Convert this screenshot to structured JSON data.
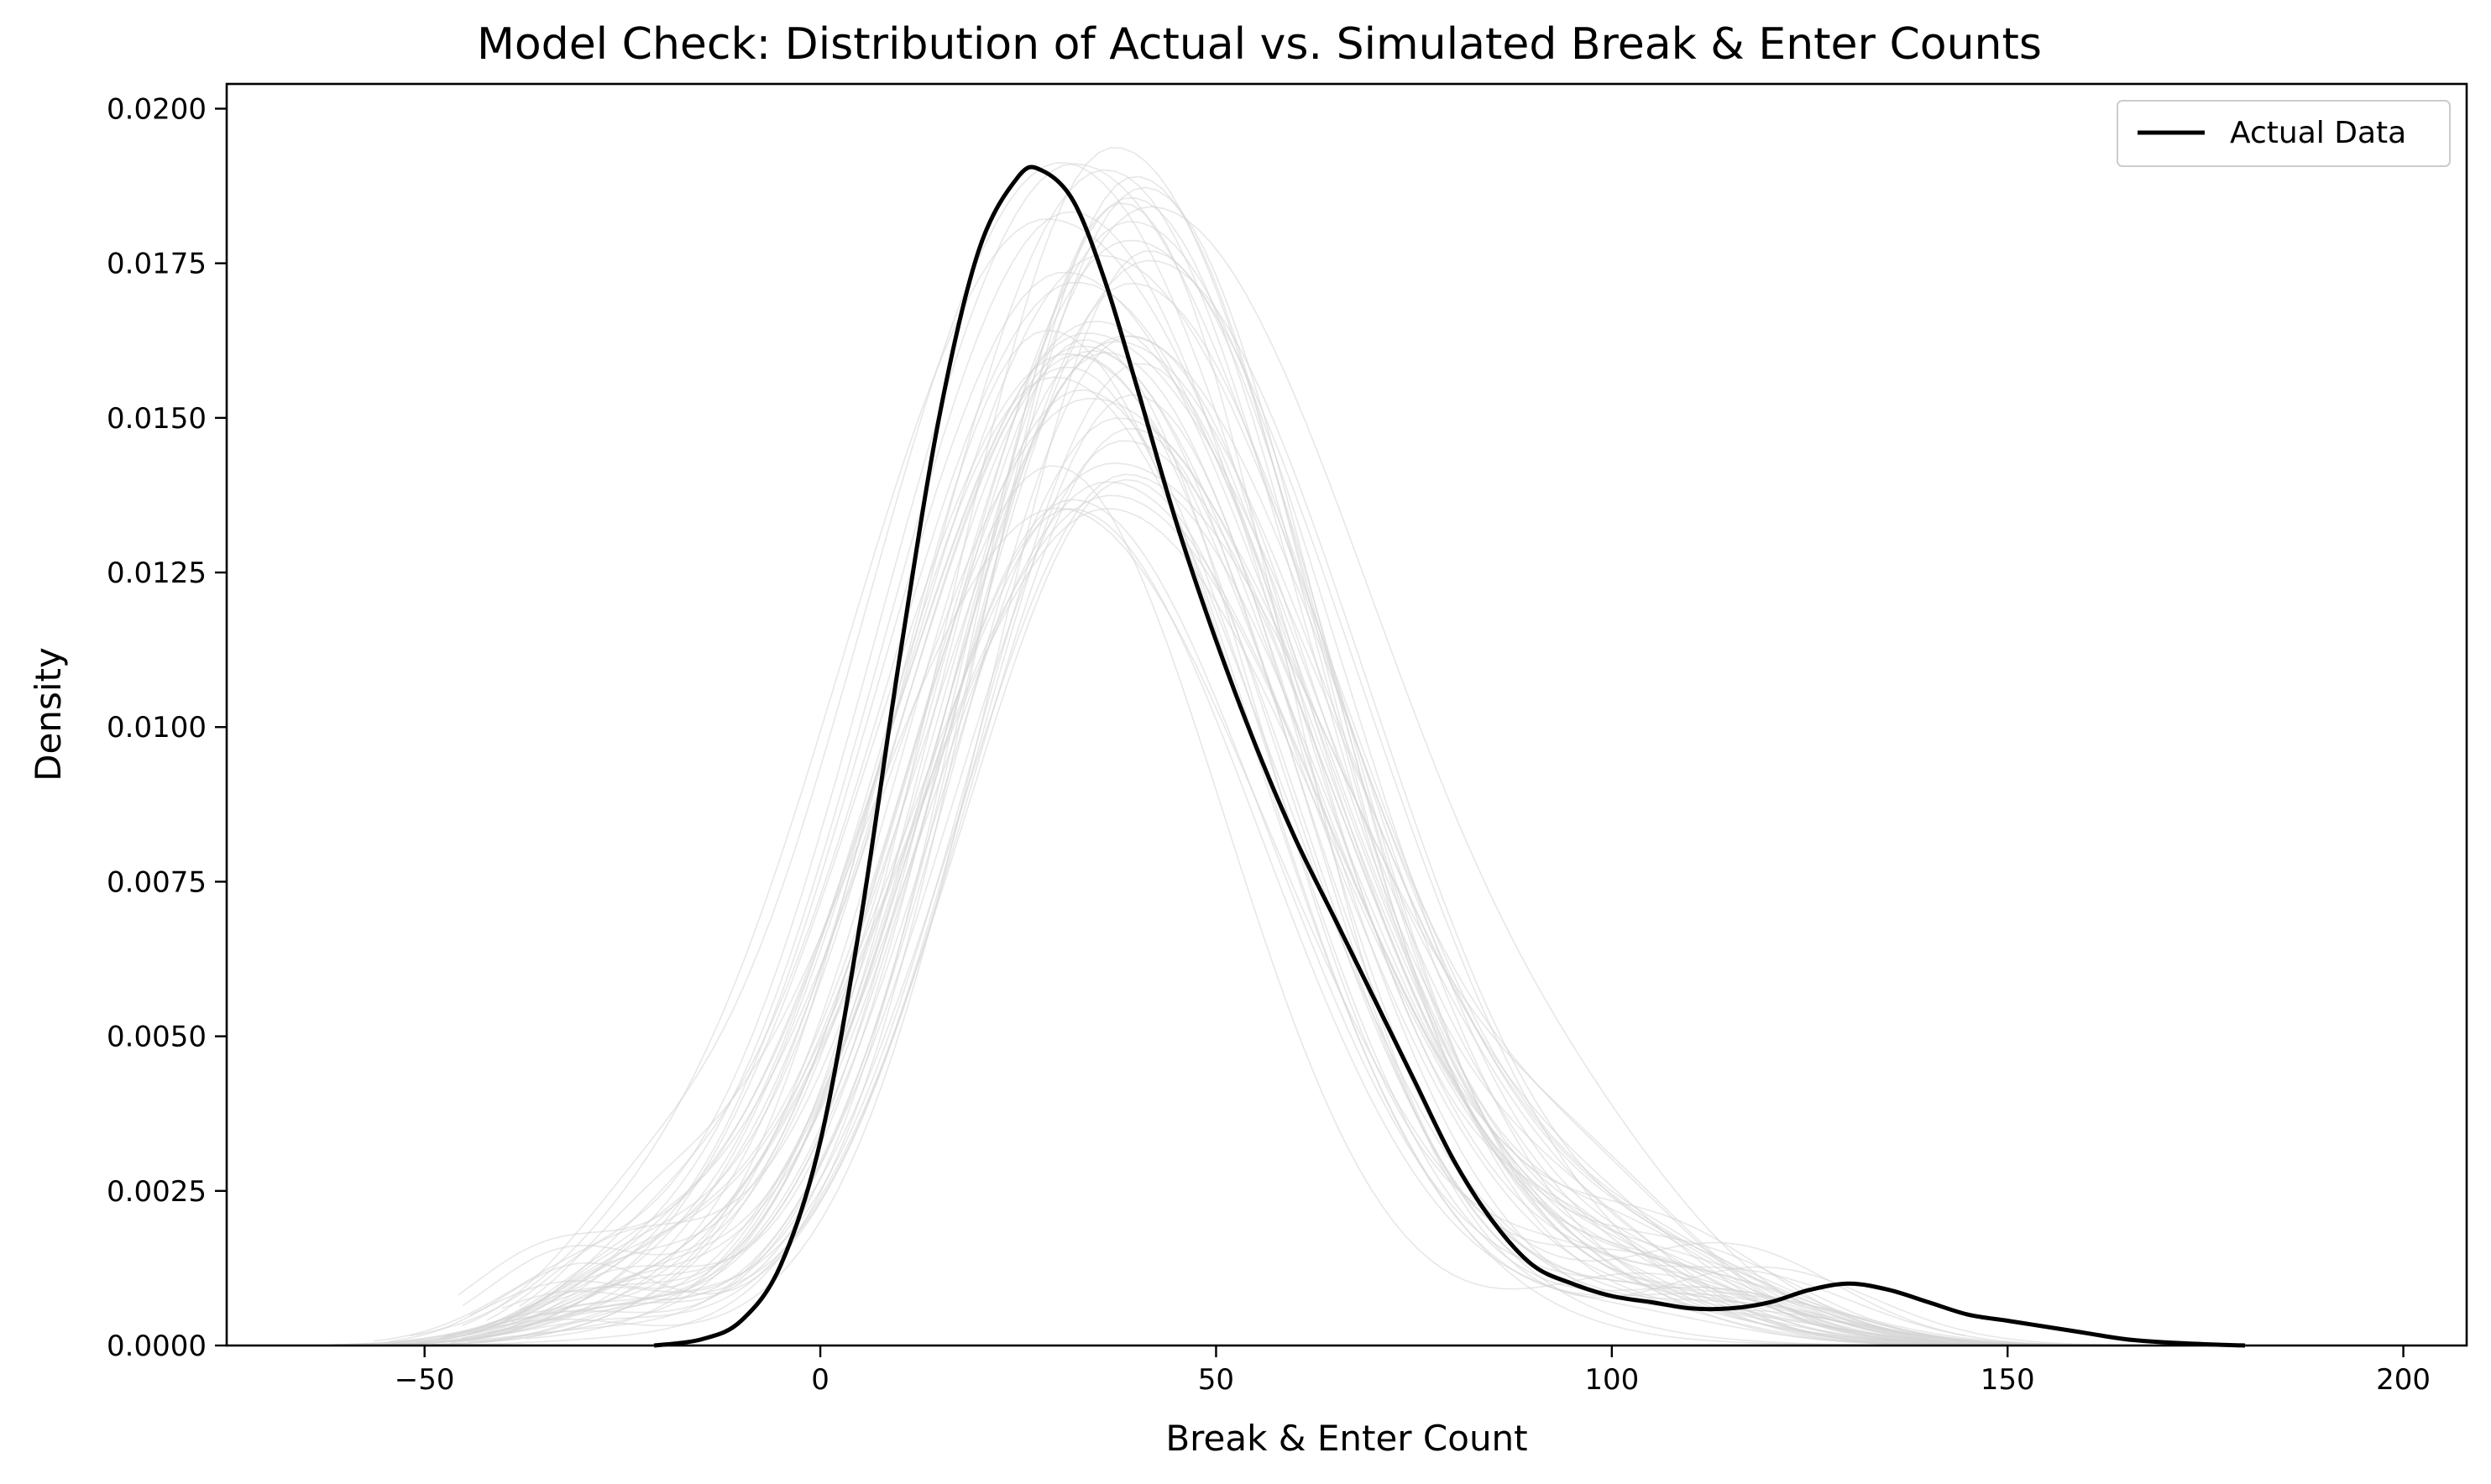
{
  "chart_data": {
    "type": "line",
    "title": "Model Check: Distribution of Actual vs. Simulated Break & Enter Counts",
    "xlabel": "Break & Enter Count",
    "ylabel": "Density",
    "xlim": [
      -75,
      208
    ],
    "ylim": [
      0,
      0.0204
    ],
    "xticks": [
      -50,
      0,
      50,
      100,
      150,
      200
    ],
    "xtick_labels": [
      "−50",
      "0",
      "50",
      "100",
      "150",
      "200"
    ],
    "yticks": [
      0,
      0.0025,
      0.005,
      0.0075,
      0.01,
      0.0125,
      0.015,
      0.0175,
      0.02
    ],
    "ytick_labels": [
      "0.0000",
      "0.0025",
      "0.0050",
      "0.0075",
      "0.0100",
      "0.0125",
      "0.0150",
      "0.0175",
      "0.0200"
    ],
    "grid": false,
    "legend": {
      "position": "top-right",
      "entries": [
        "Actual Data"
      ]
    },
    "colors": {
      "actual": "#000000",
      "simulated": "#d3d3d3"
    },
    "series": [
      {
        "name": "Actual Data",
        "x": [
          -21,
          -15,
          -10,
          -5,
          0,
          5,
          10,
          15,
          20,
          25,
          28,
          32,
          36,
          40,
          45,
          50,
          55,
          60,
          65,
          70,
          75,
          80,
          85,
          90,
          95,
          100,
          105,
          110,
          115,
          120,
          125,
          130,
          135,
          140,
          145,
          150,
          155,
          160,
          165,
          170,
          175,
          180
        ],
        "y": [
          0.0,
          0.0001,
          0.0004,
          0.0013,
          0.0033,
          0.0068,
          0.0111,
          0.015,
          0.0177,
          0.0189,
          0.019,
          0.0185,
          0.0172,
          0.0155,
          0.0133,
          0.0114,
          0.0097,
          0.0082,
          0.0069,
          0.0056,
          0.0043,
          0.003,
          0.002,
          0.0013,
          0.001,
          0.0008,
          0.0007,
          0.0006,
          0.0006,
          0.0007,
          0.0009,
          0.001,
          0.0009,
          0.0007,
          0.0005,
          0.0004,
          0.0003,
          0.0002,
          0.0001,
          5e-05,
          2e-05,
          0.0
        ]
      }
    ],
    "simulated": {
      "count": 50,
      "x_range": [
        -62,
        178
      ],
      "peak_density_range": [
        0.0135,
        0.0194
      ],
      "peak_x_range": [
        28,
        42
      ],
      "spread_range": [
        19,
        26
      ],
      "left_tail_bump": {
        "center": -28,
        "height_max": 0.0014
      },
      "right_tail_bump": {
        "center": 108,
        "height_max": 0.0016
      }
    }
  }
}
